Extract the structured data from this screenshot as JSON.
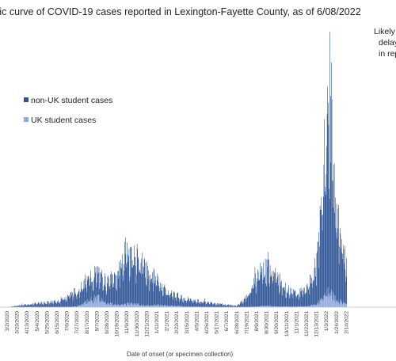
{
  "chart_data": {
    "type": "bar",
    "stacked": true,
    "title": "Epidemic curve of COVID-19 cases reported in Lexington-Fayette County, as of 6/08/2022",
    "xlabel": "Date of onset (or specimen collection)",
    "ylabel": "",
    "grid": false,
    "legend_position": "left",
    "annotation": "Likely delays in reporting",
    "series": [
      {
        "name": "non-UK student cases",
        "color": "#2f5597"
      },
      {
        "name": "UK student cases",
        "color": "#8faadc"
      }
    ],
    "x_tick_labels": [
      "3/2/2020",
      "3/23/2020",
      "4/13/2020",
      "5/4/2020",
      "5/25/2020",
      "6/15/2020",
      "7/6/2020",
      "7/27/2020",
      "8/17/2020",
      "9/7/2020",
      "9/28/2020",
      "10/19/2020",
      "11/9/2020",
      "11/30/2020",
      "12/21/2020",
      "1/11/2021",
      "2/1/2021",
      "2/22/2021",
      "3/15/2021",
      "4/5/2021",
      "4/26/2021",
      "5/17/2021",
      "6/7/2021",
      "6/28/2021",
      "7/19/2021",
      "8/9/2021",
      "8/30/2021",
      "9/20/2021",
      "10/11/2021",
      "11/1/2021",
      "11/22/2021",
      "12/13/2021",
      "1/3/2022",
      "1/24/2022",
      "2/14/2022"
    ],
    "daily_profile": [
      {
        "date": "3/2/2020",
        "non_uk": 0,
        "uk": 0
      },
      {
        "date": "4/13/2020",
        "non_uk": 4,
        "uk": 0
      },
      {
        "date": "6/15/2020",
        "non_uk": 8,
        "uk": 0
      },
      {
        "date": "7/27/2020",
        "non_uk": 22,
        "uk": 1
      },
      {
        "date": "8/17/2020",
        "non_uk": 30,
        "uk": 8
      },
      {
        "date": "9/7/2020",
        "non_uk": 34,
        "uk": 14
      },
      {
        "date": "9/28/2020",
        "non_uk": 30,
        "uk": 6
      },
      {
        "date": "10/19/2020",
        "non_uk": 42,
        "uk": 3
      },
      {
        "date": "11/9/2020",
        "non_uk": 75,
        "uk": 5
      },
      {
        "date": "11/30/2020",
        "non_uk": 65,
        "uk": 4
      },
      {
        "date": "12/21/2020",
        "non_uk": 48,
        "uk": 2
      },
      {
        "date": "1/11/2021",
        "non_uk": 36,
        "uk": 3
      },
      {
        "date": "2/1/2021",
        "non_uk": 20,
        "uk": 2
      },
      {
        "date": "3/15/2021",
        "non_uk": 10,
        "uk": 1
      },
      {
        "date": "5/17/2021",
        "non_uk": 5,
        "uk": 0
      },
      {
        "date": "6/28/2021",
        "non_uk": 2,
        "uk": 0
      },
      {
        "date": "7/19/2021",
        "non_uk": 14,
        "uk": 0
      },
      {
        "date": "8/9/2021",
        "non_uk": 42,
        "uk": 1
      },
      {
        "date": "8/30/2021",
        "non_uk": 60,
        "uk": 2
      },
      {
        "date": "9/20/2021",
        "non_uk": 42,
        "uk": 1
      },
      {
        "date": "10/11/2021",
        "non_uk": 24,
        "uk": 1
      },
      {
        "date": "11/1/2021",
        "non_uk": 18,
        "uk": 1
      },
      {
        "date": "11/22/2021",
        "non_uk": 24,
        "uk": 1
      },
      {
        "date": "12/13/2021",
        "non_uk": 55,
        "uk": 4
      },
      {
        "date": "1/3/2022",
        "non_uk": 230,
        "uk": 18
      },
      {
        "date": "1/10/2022",
        "non_uk": 280,
        "uk": 22
      },
      {
        "date": "1/24/2022",
        "non_uk": 120,
        "uk": 10
      },
      {
        "date": "2/14/2022",
        "non_uk": 55,
        "uk": 4
      }
    ],
    "peak_value_approx": 300
  }
}
